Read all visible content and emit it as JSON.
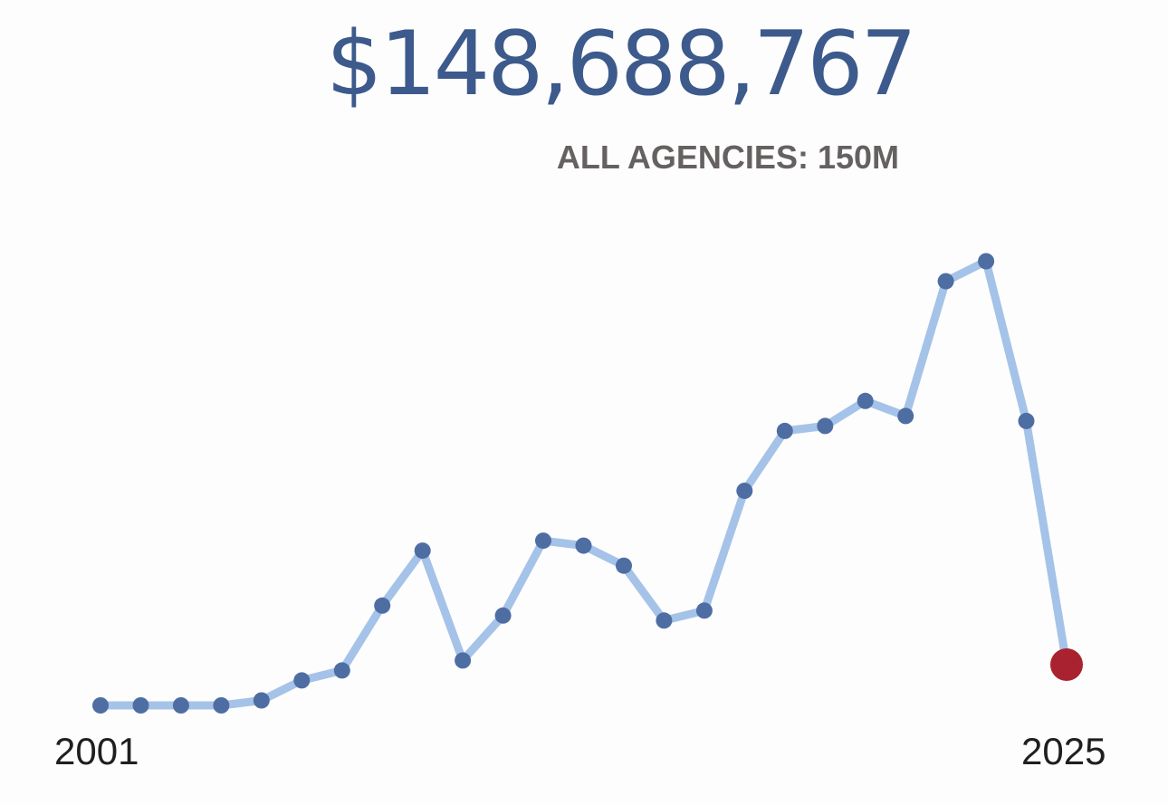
{
  "headline": "$148,688,767",
  "subhead": "ALL AGENCIES: 150M",
  "colors": {
    "headline": "#3d5a8c",
    "line": "#a5c3e8",
    "point": "#4e6ea3",
    "highlight": "#a8232f",
    "subhead": "#666161",
    "axis_text": "#1f1f1f"
  },
  "chart_data": {
    "type": "line",
    "x": [
      2001,
      2002,
      2003,
      2004,
      2005,
      2006,
      2007,
      2008,
      2009,
      2010,
      2011,
      2012,
      2013,
      2014,
      2015,
      2016,
      2017,
      2018,
      2019,
      2020,
      2021,
      2022,
      2023,
      2024,
      2025
    ],
    "values": [
      2,
      2,
      2,
      2,
      3,
      7,
      9,
      22,
      33,
      11,
      20,
      35,
      34,
      30,
      19,
      21,
      45,
      57,
      58,
      63,
      60,
      87,
      91,
      59,
      148688767
    ],
    "value_note": "",
    "xtick_labels": [
      "2001",
      "2025"
    ],
    "highlight_last": true,
    "grid": false
  }
}
